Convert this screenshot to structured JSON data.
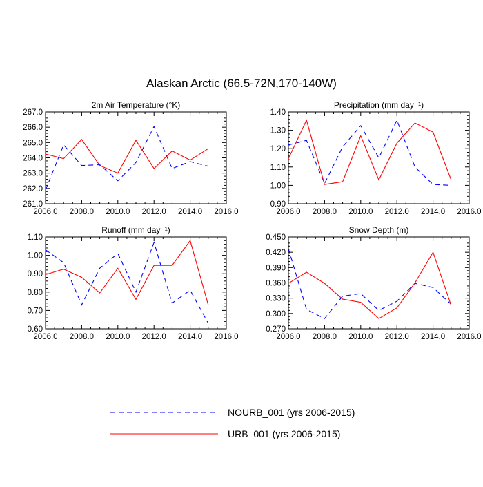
{
  "title": "Alaskan Arctic (66.5-72N,170-140W)",
  "colors": {
    "nourb": "#0000ff",
    "urb": "#ff0000",
    "axis": "#000000"
  },
  "legend": {
    "placement": "bottom",
    "items": [
      {
        "series": "NOURB_001",
        "label": "NOURB_001 (yrs 2006-2015)",
        "color": "#0000ff",
        "dash": true
      },
      {
        "series": "URB_001",
        "label": "URB_001 (yrs 2006-2015)",
        "color": "#ff0000",
        "dash": false
      }
    ]
  },
  "chart_data": [
    {
      "type": "line",
      "title": "2m Air Temperature (°K)",
      "x": [
        2006,
        2007,
        2008,
        2009,
        2010,
        2011,
        2012,
        2013,
        2014,
        2015
      ],
      "xlim": [
        2006,
        2016
      ],
      "xticks": [
        2006,
        2008,
        2010,
        2012,
        2014,
        2016
      ],
      "xtick_labels": [
        "2006.0",
        "2008.0",
        "2010.0",
        "2012.0",
        "2014.0",
        "2016.0"
      ],
      "ylim": [
        261,
        267
      ],
      "yticks": [
        261,
        262,
        263,
        264,
        265,
        266,
        267
      ],
      "ytick_labels": [
        "261.0",
        "262.0",
        "263.0",
        "264.0",
        "265.0",
        "266.0",
        "267.0"
      ],
      "series": [
        {
          "name": "NOURB_001",
          "values": [
            261.9,
            264.85,
            263.5,
            263.55,
            262.5,
            263.7,
            266.05,
            263.3,
            263.75,
            263.45
          ]
        },
        {
          "name": "URB_001",
          "values": [
            264.25,
            263.95,
            265.2,
            263.5,
            263.0,
            265.15,
            263.3,
            264.45,
            263.85,
            264.6
          ]
        }
      ]
    },
    {
      "type": "line",
      "title": "Precipitation (mm day⁻¹)",
      "x": [
        2006,
        2007,
        2008,
        2009,
        2010,
        2011,
        2012,
        2013,
        2014,
        2015
      ],
      "xlim": [
        2006,
        2016
      ],
      "xticks": [
        2006,
        2008,
        2010,
        2012,
        2014,
        2016
      ],
      "xtick_labels": [
        "2006.0",
        "2008.0",
        "2010.0",
        "2012.0",
        "2014.0",
        "2016.0"
      ],
      "ylim": [
        0.9,
        1.4
      ],
      "yticks": [
        0.9,
        1.0,
        1.1,
        1.2,
        1.3,
        1.4
      ],
      "ytick_labels": [
        "0.90",
        "1.00",
        "1.10",
        "1.20",
        "1.30",
        "1.40"
      ],
      "series": [
        {
          "name": "NOURB_001",
          "values": [
            1.22,
            1.245,
            1.01,
            1.21,
            1.325,
            1.15,
            1.355,
            1.1,
            1.005,
            1.0
          ]
        },
        {
          "name": "URB_001",
          "values": [
            1.145,
            1.355,
            1.005,
            1.02,
            1.27,
            1.03,
            1.23,
            1.34,
            1.29,
            1.03
          ]
        }
      ]
    },
    {
      "type": "line",
      "title": "Runoff (mm day⁻¹)",
      "x": [
        2006,
        2007,
        2008,
        2009,
        2010,
        2011,
        2012,
        2013,
        2014,
        2015
      ],
      "xlim": [
        2006,
        2016
      ],
      "xticks": [
        2006,
        2008,
        2010,
        2012,
        2014,
        2016
      ],
      "xtick_labels": [
        "2006.0",
        "2008.0",
        "2010.0",
        "2012.0",
        "2014.0",
        "2016.0"
      ],
      "ylim": [
        0.6,
        1.1
      ],
      "yticks": [
        0.6,
        0.7,
        0.8,
        0.9,
        1.0,
        1.1
      ],
      "ytick_labels": [
        "0.60",
        "0.70",
        "0.80",
        "0.90",
        "1.00",
        "1.10"
      ],
      "series": [
        {
          "name": "NOURB_001",
          "values": [
            1.03,
            0.96,
            0.73,
            0.93,
            1.01,
            0.8,
            1.07,
            0.74,
            0.81,
            0.63
          ]
        },
        {
          "name": "URB_001",
          "values": [
            0.895,
            0.925,
            0.88,
            0.795,
            0.93,
            0.76,
            0.945,
            0.945,
            1.08,
            0.73
          ]
        }
      ]
    },
    {
      "type": "line",
      "title": "Snow Depth (m)",
      "x": [
        2006,
        2007,
        2008,
        2009,
        2010,
        2011,
        2012,
        2013,
        2014,
        2015
      ],
      "xlim": [
        2006,
        2016
      ],
      "xticks": [
        2006,
        2008,
        2010,
        2012,
        2014,
        2016
      ],
      "xtick_labels": [
        "2006.0",
        "2008.0",
        "2010.0",
        "2012.0",
        "2014.0",
        "2016.0"
      ],
      "ylim": [
        0.27,
        0.45
      ],
      "yticks": [
        0.27,
        0.3,
        0.33,
        0.36,
        0.39,
        0.42,
        0.45
      ],
      "ytick_labels": [
        "0.270",
        "0.300",
        "0.330",
        "0.360",
        "0.390",
        "0.420",
        "0.450"
      ],
      "series": [
        {
          "name": "NOURB_001",
          "values": [
            0.427,
            0.308,
            0.29,
            0.334,
            0.339,
            0.306,
            0.324,
            0.359,
            0.351,
            0.318
          ]
        },
        {
          "name": "URB_001",
          "values": [
            0.359,
            0.381,
            0.359,
            0.328,
            0.322,
            0.29,
            0.311,
            0.36,
            0.42,
            0.316
          ]
        }
      ]
    }
  ]
}
